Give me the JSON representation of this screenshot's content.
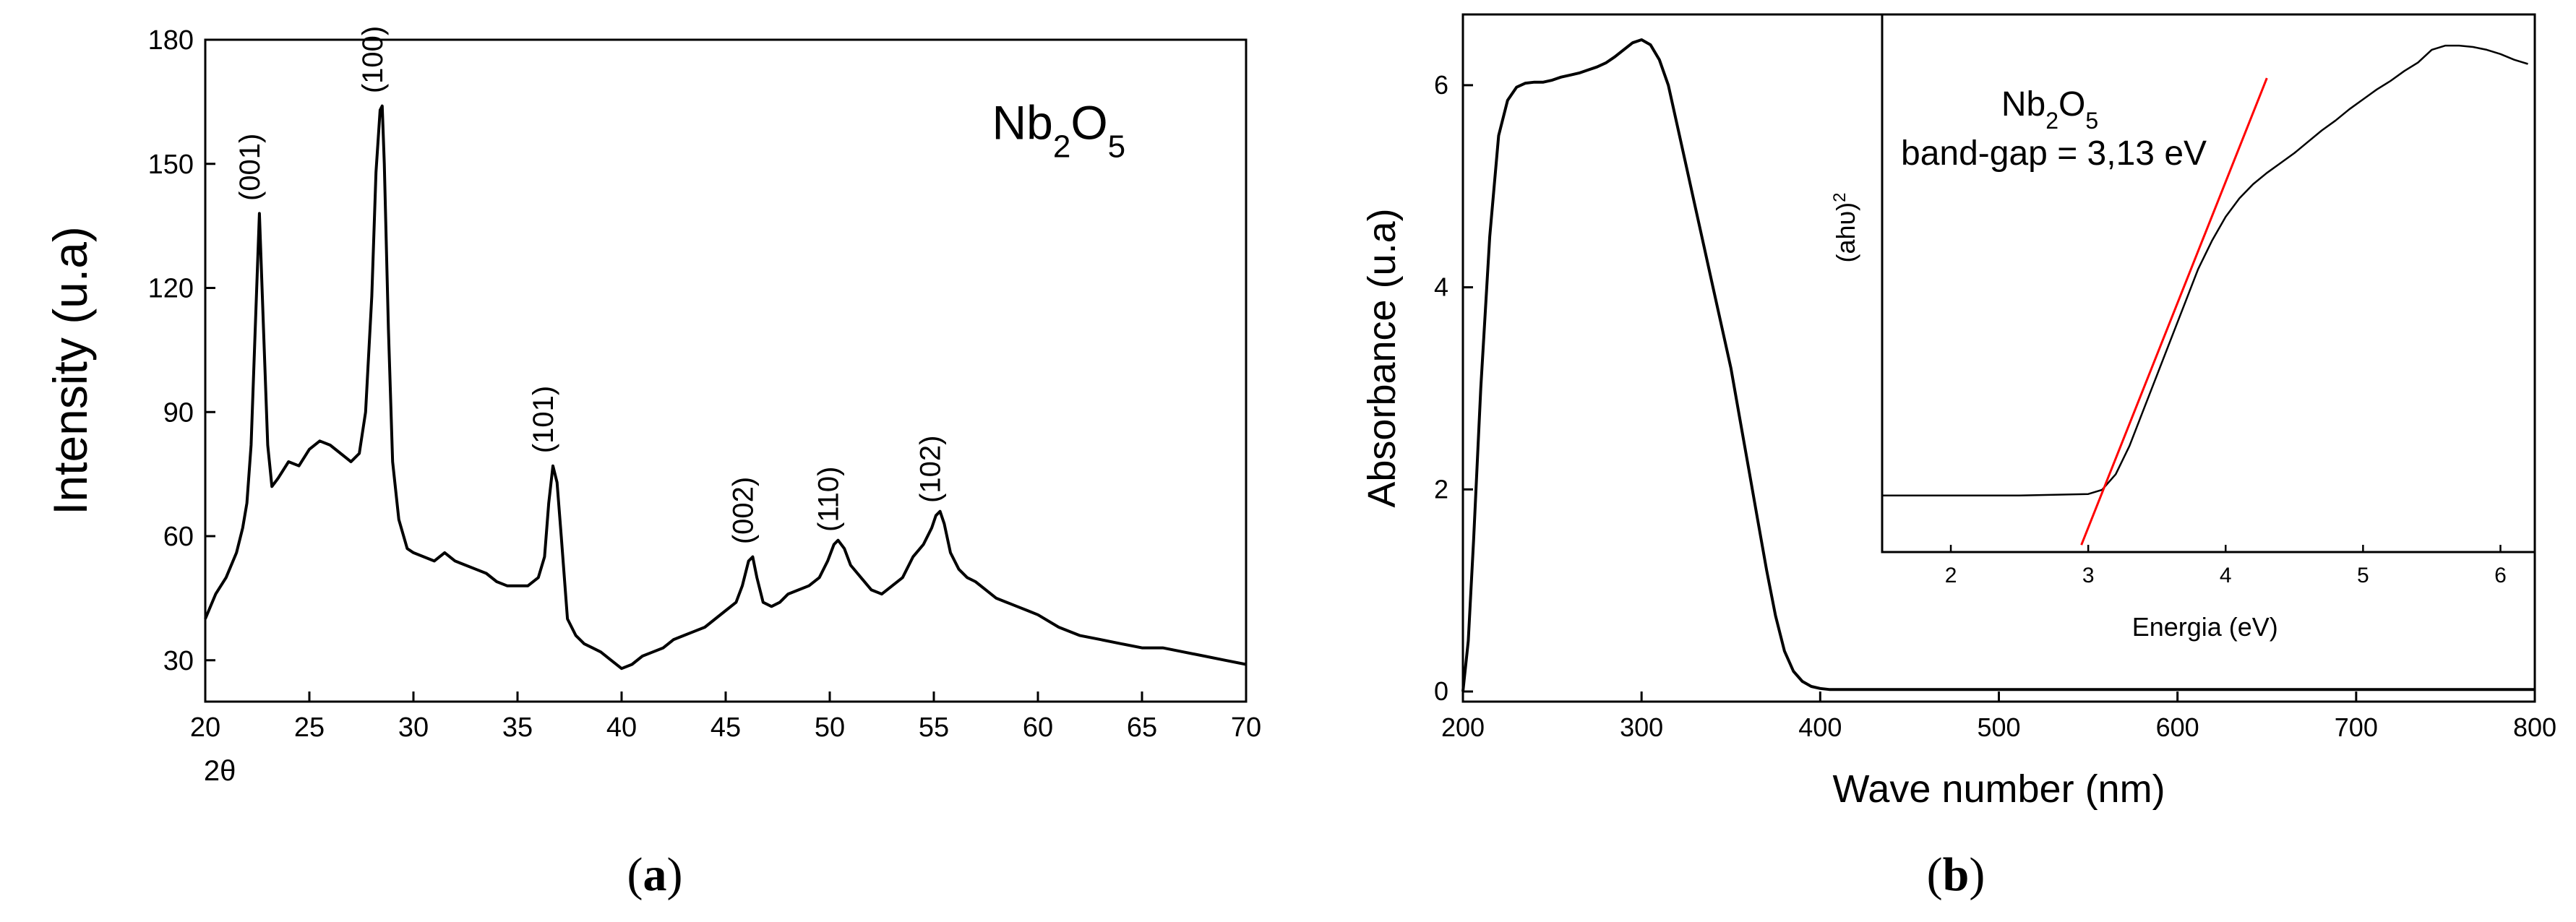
{
  "chart_data": [
    {
      "type": "line",
      "panel_label": "a",
      "title": "",
      "xlabel": "2θ",
      "ylabel": "Intensity (u.a)",
      "xlim": [
        20,
        70
      ],
      "ylim": [
        20,
        180
      ],
      "xticks": [
        20,
        25,
        30,
        35,
        40,
        45,
        50,
        55,
        60,
        65,
        70
      ],
      "yticks": [
        30,
        60,
        90,
        120,
        150,
        180
      ],
      "grid": false,
      "annotations": [
        {
          "text": "Nb₂O₅",
          "x": 61,
          "y": 156
        },
        {
          "text": "(001)",
          "x": 22.6,
          "y": 140
        },
        {
          "text": "(100)",
          "x": 28.5,
          "y": 166
        },
        {
          "text": "(101)",
          "x": 36.7,
          "y": 79
        },
        {
          "text": "(002)",
          "x": 46.3,
          "y": 57
        },
        {
          "text": "(110)",
          "x": 50.4,
          "y": 60
        },
        {
          "text": "(102)",
          "x": 55.3,
          "y": 67
        }
      ],
      "series": [
        {
          "name": "Nb2O5 XRD",
          "x": [
            20.0,
            20.5,
            21.0,
            21.5,
            21.8,
            22.0,
            22.2,
            22.4,
            22.6,
            22.8,
            23.0,
            23.2,
            23.5,
            24.0,
            24.5,
            25.0,
            25.5,
            26.0,
            26.5,
            27.0,
            27.4,
            27.7,
            28.0,
            28.2,
            28.4,
            28.5,
            28.6,
            28.8,
            29.0,
            29.3,
            29.7,
            30.0,
            30.5,
            31.0,
            31.5,
            32.0,
            32.5,
            33.0,
            33.5,
            34.0,
            34.5,
            35.0,
            35.5,
            36.0,
            36.3,
            36.5,
            36.7,
            36.9,
            37.1,
            37.4,
            37.8,
            38.2,
            38.6,
            39.0,
            39.5,
            40.0,
            40.5,
            41.0,
            41.5,
            42.0,
            42.5,
            43.0,
            43.5,
            44.0,
            44.5,
            45.0,
            45.5,
            45.8,
            46.1,
            46.3,
            46.5,
            46.8,
            47.2,
            47.6,
            48.0,
            48.5,
            49.0,
            49.5,
            49.9,
            50.2,
            50.4,
            50.7,
            51.0,
            51.5,
            52.0,
            52.5,
            53.0,
            53.5,
            54.0,
            54.5,
            54.9,
            55.1,
            55.3,
            55.5,
            55.8,
            56.2,
            56.6,
            57.0,
            57.5,
            58.0,
            58.5,
            59.0,
            59.5,
            60.0,
            61.0,
            62.0,
            63.0,
            64.0,
            65.0,
            66.0,
            67.0,
            68.0,
            69.0,
            70.0
          ],
          "y": [
            40,
            46,
            50,
            56,
            62,
            68,
            82,
            110,
            138,
            110,
            82,
            72,
            74,
            78,
            77,
            81,
            83,
            82,
            80,
            78,
            80,
            90,
            118,
            148,
            163,
            164,
            150,
            110,
            78,
            64,
            57,
            56,
            55,
            54,
            56,
            54,
            53,
            52,
            51,
            49,
            48,
            48,
            48,
            50,
            55,
            68,
            77,
            73,
            60,
            40,
            36,
            34,
            33,
            32,
            30,
            28,
            29,
            31,
            32,
            33,
            35,
            36,
            37,
            38,
            40,
            42,
            44,
            48,
            54,
            55,
            50,
            44,
            43,
            44,
            46,
            47,
            48,
            50,
            54,
            58,
            59,
            57,
            53,
            50,
            47,
            46,
            48,
            50,
            55,
            58,
            62,
            65,
            66,
            63,
            56,
            52,
            50,
            49,
            47,
            45,
            44,
            43,
            42,
            41,
            38,
            36,
            35,
            34,
            33,
            33,
            32,
            31,
            30,
            29
          ]
        }
      ]
    },
    {
      "type": "line",
      "panel_label": "b",
      "title": "",
      "xlabel": "Wave number (nm)",
      "ylabel": "Absorbance (u.a)",
      "xlim": [
        200,
        800
      ],
      "ylim": [
        -0.1,
        6.7
      ],
      "xticks": [
        200,
        300,
        400,
        500,
        600,
        700,
        800
      ],
      "yticks": [
        0,
        2,
        4,
        6
      ],
      "grid": false,
      "series": [
        {
          "name": "Absorbance",
          "x": [
            200,
            203,
            206,
            210,
            215,
            220,
            225,
            230,
            235,
            240,
            245,
            250,
            255,
            260,
            265,
            270,
            275,
            280,
            285,
            290,
            295,
            300,
            305,
            310,
            315,
            320,
            325,
            330,
            335,
            340,
            345,
            350,
            355,
            360,
            365,
            370,
            375,
            380,
            385,
            390,
            395,
            400,
            405,
            410,
            420,
            450,
            500,
            550,
            600,
            650,
            700,
            750,
            800
          ],
          "y": [
            0.0,
            0.5,
            1.5,
            3.0,
            4.5,
            5.5,
            5.85,
            5.98,
            6.02,
            6.03,
            6.03,
            6.05,
            6.08,
            6.1,
            6.12,
            6.15,
            6.18,
            6.22,
            6.28,
            6.35,
            6.42,
            6.45,
            6.4,
            6.25,
            6.0,
            5.6,
            5.2,
            4.8,
            4.4,
            4.0,
            3.6,
            3.2,
            2.7,
            2.2,
            1.7,
            1.2,
            0.75,
            0.4,
            0.2,
            0.1,
            0.05,
            0.03,
            0.02,
            0.02,
            0.02,
            0.02,
            0.02,
            0.02,
            0.02,
            0.02,
            0.02,
            0.02,
            0.02
          ]
        }
      ],
      "inset": {
        "type": "line",
        "title_lines": [
          "Nb₂O₅",
          "band-gap = 3,13 eV"
        ],
        "xlabel": "Energia (eV)",
        "ylabel": "(ahυ)²",
        "xlim": [
          1.5,
          6.25
        ],
        "ylim": [
          -0.4,
          3.4
        ],
        "xticks": [
          2,
          3,
          4,
          5,
          6
        ],
        "series": [
          {
            "name": "Tauc plot",
            "x": [
              1.5,
              2.0,
              2.5,
              3.0,
              3.1,
              3.2,
              3.3,
              3.4,
              3.5,
              3.6,
              3.7,
              3.8,
              3.9,
              4.0,
              4.1,
              4.2,
              4.3,
              4.4,
              4.5,
              4.6,
              4.7,
              4.8,
              4.9,
              5.0,
              5.1,
              5.2,
              5.3,
              5.4,
              5.5,
              5.6,
              5.7,
              5.8,
              5.9,
              6.0,
              6.1,
              6.2
            ],
            "y": [
              0.0,
              0.0,
              0.0,
              0.01,
              0.04,
              0.15,
              0.35,
              0.6,
              0.85,
              1.1,
              1.35,
              1.6,
              1.8,
              1.97,
              2.1,
              2.2,
              2.28,
              2.35,
              2.42,
              2.5,
              2.58,
              2.65,
              2.73,
              2.8,
              2.87,
              2.93,
              3.0,
              3.06,
              3.15,
              3.18,
              3.18,
              3.17,
              3.15,
              3.12,
              3.08,
              3.05
            ]
          },
          {
            "name": "Linear fit",
            "x": [
              2.95,
              4.3
            ],
            "y": [
              -0.35,
              2.95
            ]
          }
        ]
      }
    }
  ]
}
